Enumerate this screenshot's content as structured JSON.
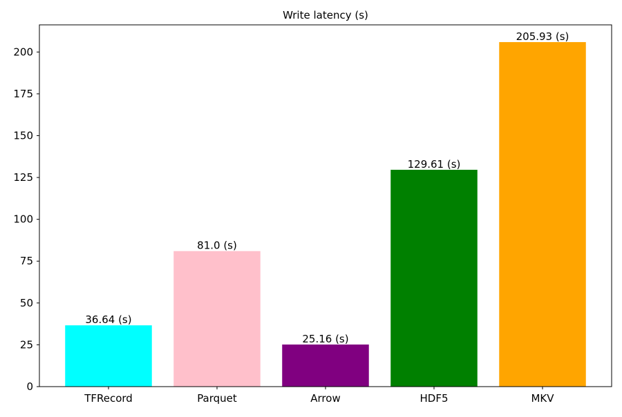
{
  "chart_data": {
    "type": "bar",
    "title": "Write latency (s)",
    "xlabel": "",
    "ylabel": "",
    "categories": [
      "TFRecord",
      "Parquet",
      "Arrow",
      "HDF5",
      "MKV"
    ],
    "values": [
      36.64,
      81.0,
      25.16,
      129.61,
      205.93
    ],
    "value_labels": [
      "36.64 (s)",
      "81.0 (s)",
      "25.16 (s)",
      "129.61 (s)",
      "205.93 (s)"
    ],
    "colors": [
      "#00ffff",
      "#ffc0cb",
      "#800080",
      "#008000",
      "#ffa500"
    ],
    "ylim": [
      0,
      216.23
    ],
    "yticks": [
      0,
      25,
      50,
      75,
      100,
      125,
      150,
      175,
      200
    ],
    "ytick_labels": [
      "0",
      "25",
      "50",
      "75",
      "100",
      "125",
      "150",
      "175",
      "200"
    ],
    "grid": false,
    "legend": "none"
  }
}
